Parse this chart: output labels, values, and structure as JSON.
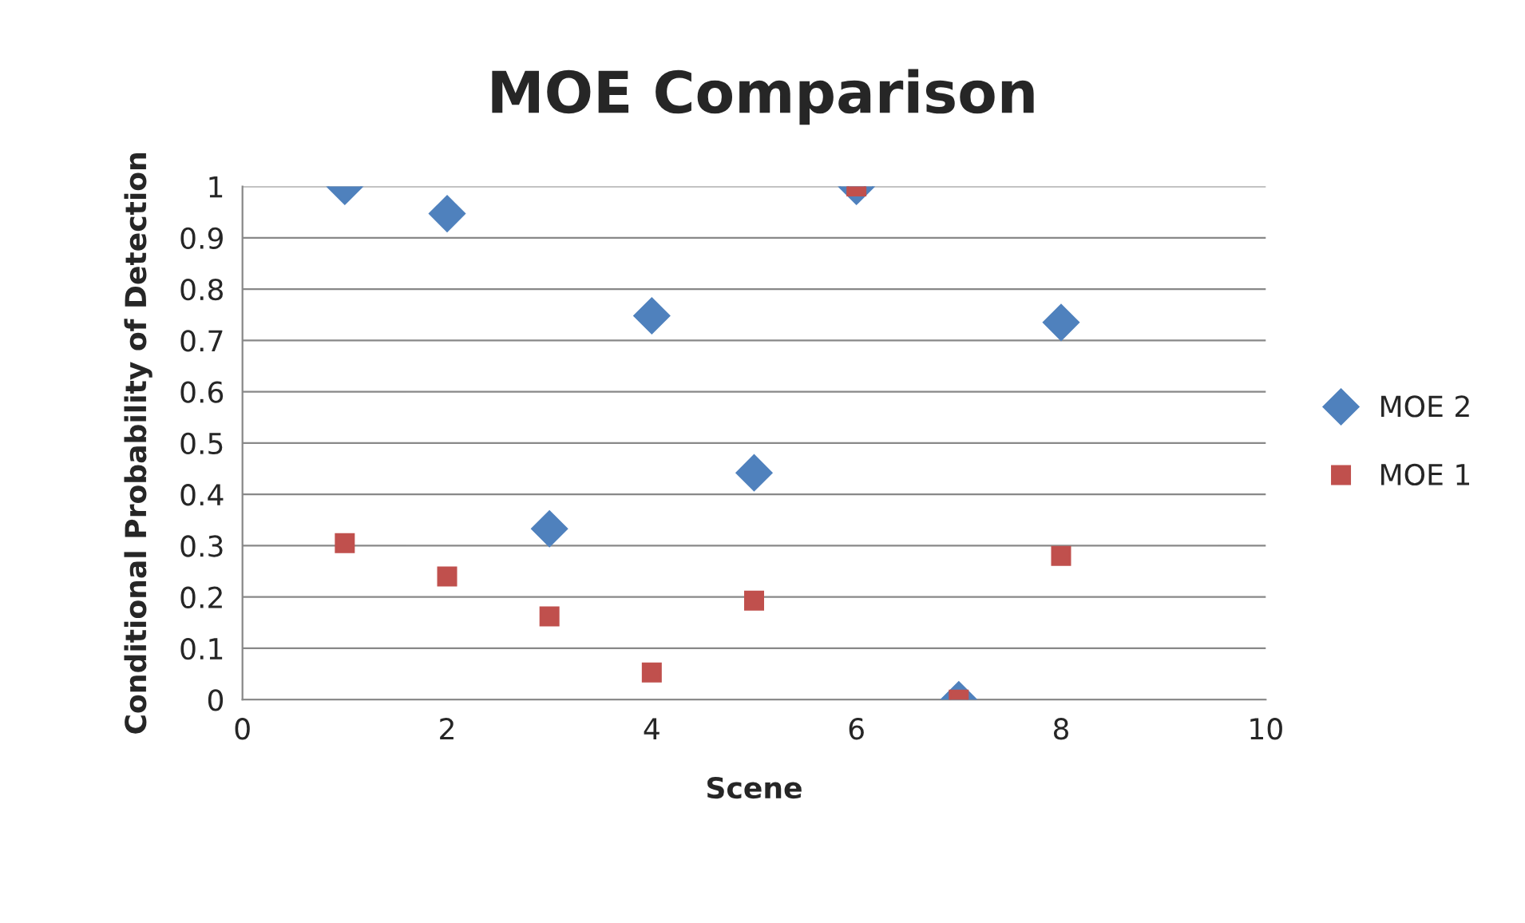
{
  "chart_data": {
    "type": "scatter",
    "title": "MOE Comparison",
    "xlabel": "Scene",
    "ylabel": "Conditional Probability of Detection",
    "x": [
      1,
      2,
      3,
      4,
      5,
      6,
      7,
      8
    ],
    "series": [
      {
        "name": "MOE 2",
        "color": "#4f81bd",
        "marker": "diamond",
        "values": [
          1.0,
          0.947,
          0.333,
          0.748,
          0.442,
          1.0,
          0.0,
          0.735
        ]
      },
      {
        "name": "MOE 1",
        "color": "#c0504d",
        "marker": "square",
        "values": [
          0.305,
          0.24,
          0.162,
          0.053,
          0.193,
          1.0,
          0.0,
          0.28
        ]
      }
    ],
    "xlim": [
      0,
      10
    ],
    "xticks": [
      0,
      2,
      4,
      6,
      8,
      10
    ],
    "ylim": [
      0,
      1
    ],
    "yticks": [
      0,
      0.1,
      0.2,
      0.3,
      0.4,
      0.5,
      0.6,
      0.7,
      0.8,
      0.9,
      1
    ],
    "grid": "y",
    "legend": "right"
  }
}
